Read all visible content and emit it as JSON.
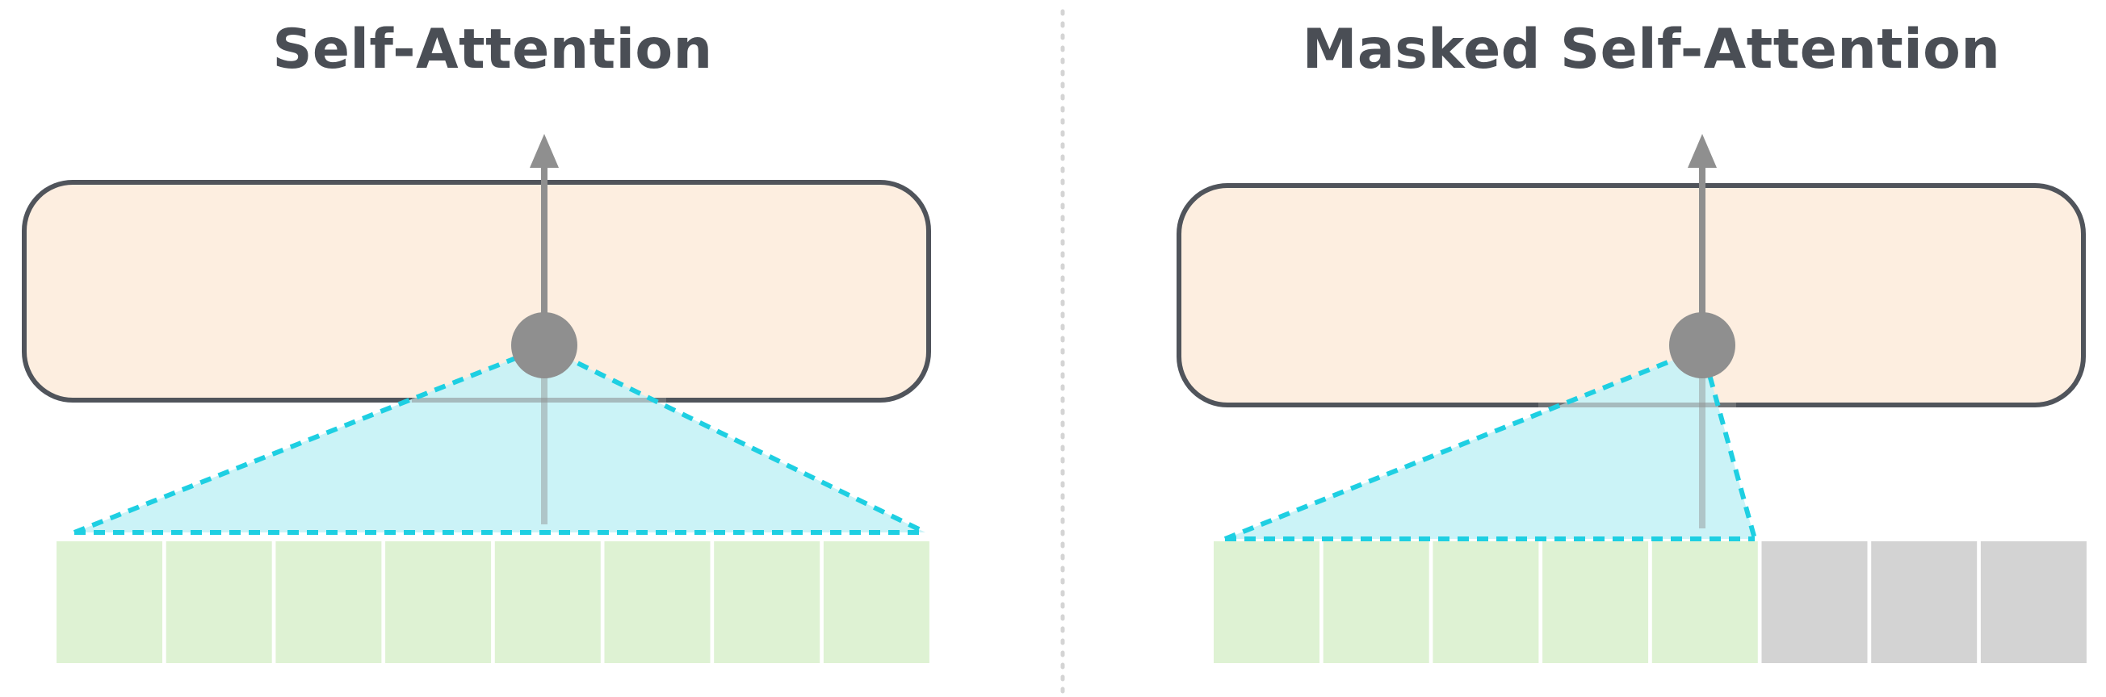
{
  "panels": [
    {
      "title": "Self-Attention",
      "tokens": [
        {
          "state": "visible"
        },
        {
          "state": "visible"
        },
        {
          "state": "visible"
        },
        {
          "state": "visible"
        },
        {
          "state": "visible"
        },
        {
          "state": "visible"
        },
        {
          "state": "visible"
        },
        {
          "state": "visible"
        }
      ]
    },
    {
      "title": "Masked Self-Attention",
      "tokens": [
        {
          "state": "visible"
        },
        {
          "state": "visible"
        },
        {
          "state": "visible"
        },
        {
          "state": "visible"
        },
        {
          "state": "visible"
        },
        {
          "state": "masked"
        },
        {
          "state": "masked"
        },
        {
          "state": "masked"
        }
      ]
    }
  ],
  "colors": {
    "title": "#4a4e55",
    "layer_fill": "#fdeee0",
    "layer_stroke": "#50545b",
    "attention_fill": "#c7f2f6",
    "attention_stroke": "#1ecfe2",
    "visible_token": "#def2d3",
    "masked_token": "#d3d3d3",
    "node": "#8f8f8f",
    "arrow": "#8f8f8f",
    "divider": "#d4d4d4"
  }
}
